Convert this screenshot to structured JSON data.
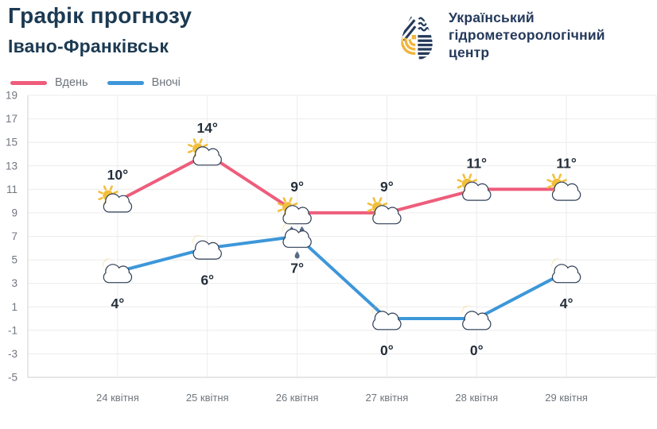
{
  "header": {
    "title": "Графік прогнозу",
    "subtitle": "Івано-Франківськ"
  },
  "logo": {
    "org_line1": "Український",
    "org_line2": "гідрометеорологічний",
    "org_line3": "центр",
    "icon": "water-drop-logo",
    "navy": "#24395b",
    "yellow": "#f0b43c"
  },
  "legend": [
    {
      "label": "Вдень",
      "color": "#ee5d7b"
    },
    {
      "label": "Вночі",
      "color": "#3d97d9"
    }
  ],
  "chart_data": {
    "type": "line",
    "title": "Графік прогнозу Івано-Франківськ",
    "xlabel": "",
    "ylabel": "",
    "categories": [
      "24 квітня",
      "25 квітня",
      "26 квітня",
      "27 квітня",
      "28 квітня",
      "29 квітня"
    ],
    "series": [
      {
        "name": "Вдень",
        "color": "#ee5d7b",
        "values": [
          10,
          14,
          9,
          9,
          11,
          11
        ],
        "labels": [
          "10°",
          "14°",
          "9°",
          "9°",
          "11°",
          "11°"
        ],
        "icons": [
          "sun-cloud",
          "sun-cloud",
          "sun-cloud-rain",
          "sun-cloud",
          "sun-cloud",
          "sun-cloud"
        ],
        "label_position": "above"
      },
      {
        "name": "Вночі",
        "color": "#3d97d9",
        "values": [
          4,
          6,
          7,
          0,
          0,
          4
        ],
        "labels": [
          "4°",
          "6°",
          "7°",
          "0°",
          "0°",
          "4°"
        ],
        "icons": [
          "moon-cloud",
          "moon-cloud",
          "moon-cloud-rain",
          "moon-cloud",
          "moon-cloud",
          "moon-cloud"
        ],
        "label_position": "below"
      }
    ],
    "ylim": [
      -5,
      19
    ],
    "yticks": [
      19,
      17,
      15,
      13,
      11,
      9,
      7,
      5,
      3,
      1,
      -1,
      -3,
      -5
    ],
    "grid": true,
    "legend_position": "top-left"
  }
}
